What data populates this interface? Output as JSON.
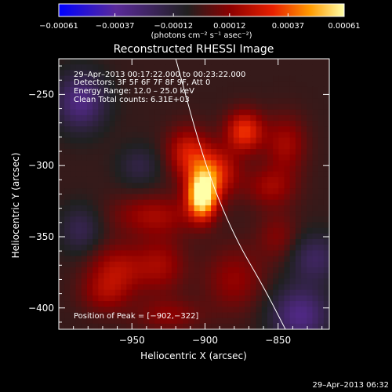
{
  "chart_data": {
    "type": "heatmap",
    "title": "Reconstructed RHESSI Image",
    "xlabel": "Heliocentric X (arcsec)",
    "ylabel": "Heliocentric Y (arcsec)",
    "xlim": [
      -1000,
      -815
    ],
    "ylim": [
      -415,
      -225
    ],
    "x_ticks": [
      -950,
      -900,
      -850
    ],
    "x_tick_labels": [
      "−950",
      "−900",
      "−850"
    ],
    "y_ticks": [
      -250,
      -300,
      -350,
      -400
    ],
    "y_tick_labels": [
      "−250",
      "−300",
      "−350",
      "−400"
    ],
    "colorbar": {
      "range": [
        -0.00061,
        0.00061
      ],
      "ticks": [
        -0.00061,
        -0.00037,
        -0.00012,
        0.00012,
        0.00037,
        0.00061
      ],
      "tick_labels": [
        "−0.00061",
        "−0.00037",
        "−0.00012",
        "0.00012",
        "0.00037",
        "0.00061"
      ],
      "unit_label": "(photons cm⁻² s⁻¹ asec⁻²)",
      "colormap": [
        "#0000ff",
        "#5a2a9a",
        "#202020",
        "#8c0000",
        "#e82000",
        "#ff9a00",
        "#ffffa8"
      ]
    },
    "info_lines": [
      "29–Apr–2013 00:17:22.000 to 00:23:22.000",
      "Detectors: 3F 5F 6F 7F 8F 9F, Att 0",
      "Energy Range: 12.0 – 25.0 keV",
      "Clean     Total counts: 6.31E+03"
    ],
    "peak_label": "Position of Peak = [−902,−322]",
    "peak": [
      -902,
      -322
    ],
    "peak_value": 0.00061,
    "sources": [
      {
        "x": -902,
        "y": -322,
        "amp": 1.0,
        "sx": 7,
        "sy": 11
      },
      {
        "x": -895,
        "y": -305,
        "amp": 0.55,
        "sx": 12,
        "sy": 12
      },
      {
        "x": -912,
        "y": -290,
        "amp": 0.4,
        "sx": 10,
        "sy": 12
      },
      {
        "x": -873,
        "y": -276,
        "amp": 0.55,
        "sx": 9,
        "sy": 10
      },
      {
        "x": -845,
        "y": -285,
        "amp": 0.3,
        "sx": 10,
        "sy": 14
      },
      {
        "x": -855,
        "y": -315,
        "amp": 0.28,
        "sx": 12,
        "sy": 10
      },
      {
        "x": -935,
        "y": -335,
        "amp": 0.3,
        "sx": 20,
        "sy": 10
      },
      {
        "x": -960,
        "y": -372,
        "amp": 0.32,
        "sx": 14,
        "sy": 12
      },
      {
        "x": -930,
        "y": -370,
        "amp": 0.28,
        "sx": 12,
        "sy": 14
      },
      {
        "x": -968,
        "y": -390,
        "amp": 0.25,
        "sx": 12,
        "sy": 10
      },
      {
        "x": -880,
        "y": -380,
        "amp": 0.25,
        "sx": 14,
        "sy": 16
      },
      {
        "x": -925,
        "y": -405,
        "amp": 0.22,
        "sx": 16,
        "sy": 8
      },
      {
        "x": -850,
        "y": -350,
        "amp": 0.2,
        "sx": 10,
        "sy": 12
      },
      {
        "x": -985,
        "y": -255,
        "amp": -0.45,
        "sx": 12,
        "sy": 14
      },
      {
        "x": -835,
        "y": -405,
        "amp": -0.45,
        "sx": 14,
        "sy": 14
      },
      {
        "x": -985,
        "y": -345,
        "amp": -0.25,
        "sx": 10,
        "sy": 12
      },
      {
        "x": -825,
        "y": -365,
        "amp": -0.3,
        "sx": 12,
        "sy": 12
      },
      {
        "x": -945,
        "y": -300,
        "amp": -0.2,
        "sx": 10,
        "sy": 10
      }
    ],
    "limb_curve": [
      [
        -920,
        -225
      ],
      [
        -900,
        -300
      ],
      [
        -880,
        -350
      ],
      [
        -860,
        -385
      ],
      [
        -845,
        -415
      ]
    ],
    "footer_timestamp": "29–Apr–2013 06:32"
  }
}
